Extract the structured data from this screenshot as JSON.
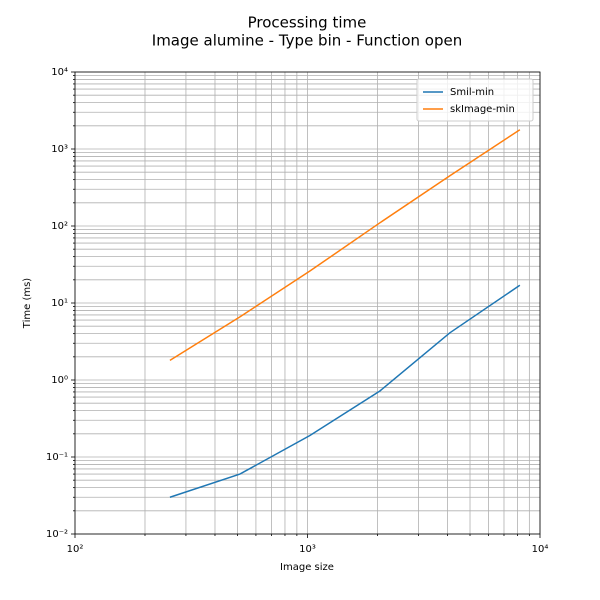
{
  "chart_data": {
    "type": "line",
    "title": "Processing time",
    "subtitle": "Image alumine - Type bin - Function open",
    "x_label": "Image size",
    "y_label": "Time (ms)",
    "x": [
      256,
      512,
      1024,
      2048,
      4096,
      8192
    ],
    "series": [
      {
        "name": "Smil-min",
        "color": "#1f77b4",
        "values": [
          0.03,
          0.06,
          0.19,
          0.72,
          4.1,
          17
        ]
      },
      {
        "name": "skImage-min",
        "color": "#ff7f0e",
        "values": [
          1.8,
          6.6,
          26,
          110,
          450,
          1780
        ]
      }
    ],
    "log_x": true,
    "log_y": true,
    "grid": true,
    "legend": "upper right",
    "xlim": [
      100,
      10000
    ],
    "ylim": [
      0.01,
      10000
    ],
    "xticks": [
      {
        "value": 100,
        "label": "10²"
      },
      {
        "value": 1000,
        "label": "10³"
      },
      {
        "value": 10000,
        "label": "10⁴"
      }
    ],
    "yticks": [
      {
        "value": 0.01,
        "label": "10⁻²"
      },
      {
        "value": 0.1,
        "label": "10⁻¹"
      },
      {
        "value": 1,
        "label": "10⁰"
      },
      {
        "value": 10,
        "label": "10¹"
      },
      {
        "value": 100,
        "label": "10²"
      },
      {
        "value": 1000,
        "label": "10³"
      },
      {
        "value": 10000,
        "label": "10⁴"
      }
    ],
    "xminorticks": [
      200,
      300,
      400,
      500,
      600,
      700,
      800,
      900,
      2000,
      3000,
      4000,
      5000,
      6000,
      7000,
      8000,
      9000
    ],
    "yminorticks": [
      0.02,
      0.03,
      0.04,
      0.05,
      0.06,
      0.07,
      0.08,
      0.09,
      0.2,
      0.3,
      0.4,
      0.5,
      0.6,
      0.7,
      0.8,
      0.9,
      2,
      3,
      4,
      5,
      6,
      7,
      8,
      9,
      20,
      30,
      40,
      50,
      60,
      70,
      80,
      90,
      200,
      300,
      400,
      500,
      600,
      700,
      800,
      900,
      2000,
      3000,
      4000,
      5000,
      6000,
      7000,
      8000,
      9000
    ]
  }
}
